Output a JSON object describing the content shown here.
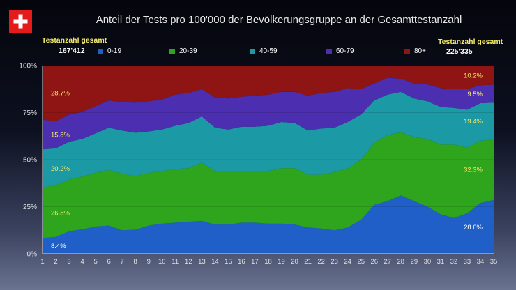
{
  "header": {
    "title": "Anteil der Tests pro 100'000 der Bevölkerungsgruppe an der Gesamttestanzahl",
    "left_total_label": "Testanzahl gesamt",
    "left_total_value": "167'412",
    "right_total_label": "Testanzahl gesamt",
    "right_total_value": "225'335"
  },
  "colors": {
    "0-19": "#1f5fc7",
    "20-39": "#2ea51c",
    "40-59": "#1b9aa6",
    "60-79": "#4b2fb0",
    "80+": "#8f1515"
  },
  "chart_data": {
    "type": "area",
    "stacked": true,
    "normalized": true,
    "title": "Anteil der Tests pro 100'000 der Bevölkerungsgruppe an der Gesamttestanzahl",
    "x": [
      1,
      2,
      3,
      4,
      5,
      6,
      7,
      8,
      9,
      10,
      11,
      12,
      13,
      14,
      15,
      16,
      17,
      18,
      19,
      20,
      21,
      22,
      23,
      24,
      25,
      26,
      27,
      28,
      29,
      30,
      31,
      32,
      33,
      34,
      35
    ],
    "ylim": [
      0,
      100
    ],
    "yticks": [
      "0%",
      "25%",
      "50%",
      "75%",
      "100%"
    ],
    "legend_position": "top",
    "series": [
      {
        "name": "0-19",
        "values": [
          8.4,
          9,
          12,
          13,
          14.5,
          15,
          12.5,
          12.8,
          15,
          16,
          16.5,
          17,
          17.5,
          15.5,
          15.5,
          16.5,
          16.5,
          16,
          16,
          15.5,
          14,
          13.5,
          12.5,
          14,
          18,
          26,
          28,
          31,
          28,
          25,
          21,
          19,
          21.5,
          27,
          28.6
        ]
      },
      {
        "name": "20-39",
        "values": [
          26.8,
          27.5,
          27.5,
          28,
          28.5,
          29.5,
          30,
          28.5,
          28,
          28,
          28.5,
          28.5,
          31,
          28.5,
          28.5,
          27.5,
          27.5,
          28,
          29.5,
          30,
          28,
          28.5,
          31,
          31.5,
          32,
          33,
          35,
          33.5,
          34,
          36,
          37,
          39,
          35,
          33,
          32.3
        ]
      },
      {
        "name": "40-59",
        "values": [
          20.2,
          19.5,
          20,
          20,
          21,
          22.5,
          23,
          23,
          22,
          22,
          23,
          24,
          24.5,
          23,
          22,
          23.5,
          23.5,
          24,
          24.5,
          24,
          23.5,
          24.5,
          23.5,
          24.5,
          24,
          22.5,
          21.5,
          21.5,
          20.5,
          20,
          20,
          19.5,
          20,
          20,
          19.4
        ]
      },
      {
        "name": "60-79",
        "values": [
          15.8,
          14.5,
          14.5,
          14.5,
          14.5,
          14.5,
          15,
          16,
          16,
          16,
          16.5,
          16,
          14.5,
          16,
          16.5,
          16,
          16.5,
          16.5,
          16,
          16.5,
          18.5,
          19,
          19,
          18,
          13.5,
          9,
          9,
          7,
          8,
          9,
          10,
          10,
          11,
          9.5,
          9.5
        ]
      },
      {
        "name": "80+",
        "values": [
          28.7,
          29.5,
          26,
          24.5,
          21.5,
          18.5,
          19.5,
          19.7,
          19,
          18,
          15.5,
          14.5,
          12.5,
          17,
          17.5,
          16.5,
          16,
          15.5,
          14,
          14,
          16,
          14.5,
          14,
          12,
          12.5,
          9.5,
          6.5,
          7,
          9.5,
          10,
          12,
          12.5,
          12.5,
          10.5,
          10.2
        ]
      }
    ],
    "data_labels": [
      {
        "series": "80+",
        "x": 1,
        "text": "28.7%"
      },
      {
        "series": "60-79",
        "x": 1,
        "text": "15.8%"
      },
      {
        "series": "40-59",
        "x": 1,
        "text": "20.2%"
      },
      {
        "series": "20-39",
        "x": 1,
        "text": "26.8%"
      },
      {
        "series": "0-19",
        "x": 1,
        "text": "8.4%"
      },
      {
        "series": "80+",
        "x": 35,
        "text": "10.2%"
      },
      {
        "series": "60-79",
        "x": 35,
        "text": "9.5%"
      },
      {
        "series": "40-59",
        "x": 35,
        "text": "19.4%"
      },
      {
        "series": "20-39",
        "x": 35,
        "text": "32.3%"
      },
      {
        "series": "0-19",
        "x": 35,
        "text": "28.6%"
      }
    ]
  }
}
